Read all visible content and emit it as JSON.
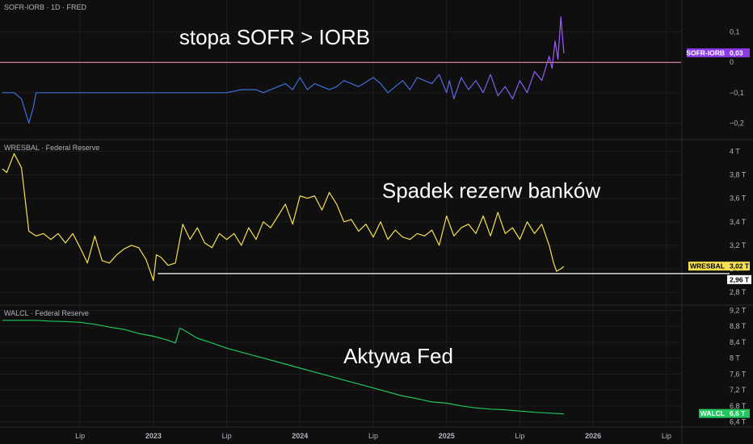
{
  "chart_data": [
    {
      "type": "line",
      "title": "SOFR-IORB · 1D · FRED",
      "annotation": "stopa SOFR > IORB",
      "yticks": [
        "0,1",
        "0",
        "−0,1",
        "−0,2"
      ],
      "ytick_values": [
        0.1,
        0,
        -0.1,
        -0.2
      ],
      "ylim": [
        -0.22,
        0.16
      ],
      "reference_level": 0,
      "last_badge": {
        "name": "SOFR-IORB",
        "value": "0,03"
      },
      "series": [
        {
          "name": "SOFR-IORB",
          "color_start": "#3d6fd8",
          "color_end": "#a259ff",
          "x": [
            2021.97,
            2022.05,
            2022.1,
            2022.15,
            2022.18,
            2022.2,
            2022.25,
            2022.3,
            2022.35,
            2022.4,
            2022.45,
            2022.5,
            2022.6,
            2022.7,
            2022.8,
            2022.9,
            2023.0,
            2023.1,
            2023.2,
            2023.25,
            2023.3,
            2023.35,
            2023.4,
            2023.5,
            2023.6,
            2023.7,
            2023.75,
            2023.8,
            2023.9,
            2023.95,
            2024.0,
            2024.05,
            2024.1,
            2024.2,
            2024.25,
            2024.3,
            2024.4,
            2024.5,
            2024.55,
            2024.6,
            2024.7,
            2024.75,
            2024.8,
            2024.9,
            2024.95,
            2025.0,
            2025.02,
            2025.05,
            2025.1,
            2025.15,
            2025.2,
            2025.25,
            2025.3,
            2025.35,
            2025.4,
            2025.45,
            2025.5,
            2025.55,
            2025.6,
            2025.65,
            2025.7,
            2025.72,
            2025.74,
            2025.76,
            2025.78,
            2025.8
          ],
          "values": [
            -0.1,
            -0.1,
            -0.12,
            -0.2,
            -0.15,
            -0.1,
            -0.1,
            -0.1,
            -0.1,
            -0.1,
            -0.1,
            -0.1,
            -0.1,
            -0.1,
            -0.1,
            -0.1,
            -0.1,
            -0.1,
            -0.1,
            -0.1,
            -0.1,
            -0.1,
            -0.1,
            -0.1,
            -0.09,
            -0.09,
            -0.1,
            -0.09,
            -0.07,
            -0.09,
            -0.05,
            -0.09,
            -0.07,
            -0.09,
            -0.08,
            -0.06,
            -0.08,
            -0.05,
            -0.07,
            -0.1,
            -0.06,
            -0.09,
            -0.05,
            -0.07,
            -0.04,
            -0.1,
            -0.06,
            -0.12,
            -0.05,
            -0.09,
            -0.06,
            -0.1,
            -0.04,
            -0.11,
            -0.08,
            -0.12,
            -0.06,
            -0.1,
            -0.03,
            -0.06,
            0.02,
            -0.02,
            0.07,
            0.01,
            0.15,
            0.03
          ]
        }
      ]
    },
    {
      "type": "line",
      "title": "WRESBAL · Federal Reserve",
      "annotation": "Spadek rezerw banków",
      "yticks": [
        "4 T",
        "3,8 T",
        "3,6 T",
        "3,4 T",
        "3,2 T",
        "3 T",
        "2,8 T"
      ],
      "ytick_values": [
        4,
        3.8,
        3.6,
        3.4,
        3.2,
        3,
        2.8
      ],
      "ylim": [
        2.76,
        4.03
      ],
      "reference_level": 2.96,
      "reference_label": "2,96 T",
      "last_badge": {
        "name": "WRESBAL",
        "value": "3,02 T"
      },
      "series": [
        {
          "name": "WRESBAL",
          "color": "#f5e050",
          "x": [
            2021.97,
            2022.0,
            2022.05,
            2022.1,
            2022.15,
            2022.2,
            2022.25,
            2022.3,
            2022.35,
            2022.4,
            2022.45,
            2022.5,
            2022.55,
            2022.6,
            2022.65,
            2022.7,
            2022.75,
            2022.8,
            2022.85,
            2022.9,
            2022.95,
            2023.0,
            2023.02,
            2023.05,
            2023.1,
            2023.15,
            2023.2,
            2023.25,
            2023.3,
            2023.35,
            2023.4,
            2023.45,
            2023.5,
            2023.55,
            2023.6,
            2023.65,
            2023.7,
            2023.75,
            2023.8,
            2023.85,
            2023.9,
            2023.95,
            2024.0,
            2024.05,
            2024.1,
            2024.15,
            2024.2,
            2024.25,
            2024.3,
            2024.35,
            2024.4,
            2024.45,
            2024.5,
            2024.55,
            2024.6,
            2024.65,
            2024.7,
            2024.75,
            2024.8,
            2024.85,
            2024.9,
            2024.95,
            2025.0,
            2025.05,
            2025.1,
            2025.15,
            2025.2,
            2025.25,
            2025.3,
            2025.35,
            2025.4,
            2025.45,
            2025.5,
            2025.55,
            2025.6,
            2025.65,
            2025.7,
            2025.73,
            2025.75,
            2025.78,
            2025.8
          ],
          "values": [
            3.85,
            3.82,
            3.98,
            3.86,
            3.32,
            3.28,
            3.3,
            3.25,
            3.3,
            3.22,
            3.3,
            3.18,
            3.05,
            3.28,
            3.07,
            3.05,
            3.12,
            3.17,
            3.2,
            3.18,
            3.08,
            2.9,
            3.12,
            3.1,
            3.03,
            3.05,
            3.38,
            3.25,
            3.35,
            3.22,
            3.18,
            3.3,
            3.25,
            3.3,
            3.2,
            3.35,
            3.25,
            3.4,
            3.35,
            3.45,
            3.55,
            3.38,
            3.62,
            3.6,
            3.62,
            3.5,
            3.65,
            3.55,
            3.4,
            3.42,
            3.32,
            3.38,
            3.27,
            3.4,
            3.25,
            3.33,
            3.27,
            3.25,
            3.3,
            3.28,
            3.33,
            3.2,
            3.45,
            3.28,
            3.35,
            3.38,
            3.3,
            3.45,
            3.28,
            3.48,
            3.3,
            3.35,
            3.25,
            3.4,
            3.3,
            3.38,
            3.2,
            3.05,
            2.98,
            3.0,
            3.02
          ]
        }
      ]
    },
    {
      "type": "line",
      "title": "WALCL · Federal Reserve",
      "annotation": "Aktywa Fed",
      "yticks": [
        "9,2 T",
        "8,8 T",
        "8,4 T",
        "8 T",
        "7,6 T",
        "7,2 T",
        "6,8 T",
        "6,4 T"
      ],
      "ytick_values": [
        9.2,
        8.8,
        8.4,
        8,
        7.6,
        7.2,
        6.8,
        6.4
      ],
      "ylim": [
        6.35,
        9.25
      ],
      "last_badge": {
        "name": "WALCL",
        "value": "6,6 T"
      },
      "series": [
        {
          "name": "WALCL",
          "color": "#22c55e",
          "x": [
            2021.97,
            2022.1,
            2022.2,
            2022.3,
            2022.4,
            2022.5,
            2022.6,
            2022.7,
            2022.8,
            2022.9,
            2023.0,
            2023.1,
            2023.15,
            2023.18,
            2023.2,
            2023.3,
            2023.4,
            2023.5,
            2023.6,
            2023.7,
            2023.8,
            2023.9,
            2024.0,
            2024.1,
            2024.2,
            2024.3,
            2024.4,
            2024.5,
            2024.6,
            2024.7,
            2024.8,
            2024.9,
            2025.0,
            2025.1,
            2025.2,
            2025.3,
            2025.4,
            2025.5,
            2025.6,
            2025.7,
            2025.8
          ],
          "values": [
            8.95,
            8.95,
            8.95,
            8.93,
            8.92,
            8.9,
            8.85,
            8.78,
            8.72,
            8.62,
            8.55,
            8.45,
            8.38,
            8.75,
            8.72,
            8.5,
            8.38,
            8.25,
            8.15,
            8.05,
            7.95,
            7.85,
            7.75,
            7.65,
            7.55,
            7.45,
            7.35,
            7.25,
            7.15,
            7.05,
            6.98,
            6.9,
            6.87,
            6.8,
            6.75,
            6.72,
            6.7,
            6.67,
            6.64,
            6.62,
            6.6
          ]
        }
      ]
    }
  ],
  "x_axis": {
    "range": [
      2021.97,
      2026.6
    ],
    "ticks": [
      {
        "label": "Lip",
        "value": 2022.5,
        "major": false
      },
      {
        "label": "2023",
        "value": 2023.0,
        "major": true
      },
      {
        "label": "Lip",
        "value": 2023.5,
        "major": false
      },
      {
        "label": "2024",
        "value": 2024.0,
        "major": true
      },
      {
        "label": "Lip",
        "value": 2024.5,
        "major": false
      },
      {
        "label": "2025",
        "value": 2025.0,
        "major": true
      },
      {
        "label": "Lip",
        "value": 2025.5,
        "major": false
      },
      {
        "label": "2026",
        "value": 2026.0,
        "major": true
      },
      {
        "label": "Lip",
        "value": 2026.5,
        "major": false
      }
    ]
  },
  "colors": {
    "background": "#0f0f0f",
    "grid": "#1e1e1e",
    "divider": "#2a2a2a",
    "zero_line": "#ff9fb3",
    "wresbal_ref": "#ffffff",
    "sofr_badge": "#8b3ce8",
    "wresbal_badge": "#f5e050",
    "walcl_badge": "#22c55e"
  }
}
